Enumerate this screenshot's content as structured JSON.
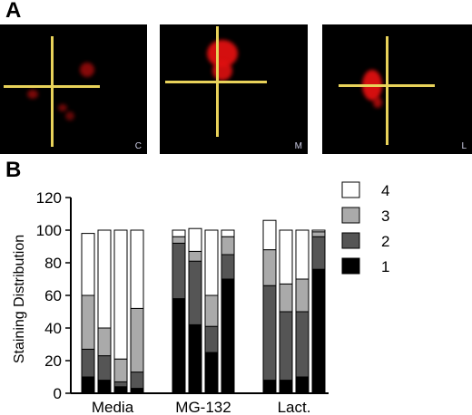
{
  "panel_a": {
    "label": "A",
    "images": [
      {
        "corner_label": "C"
      },
      {
        "corner_label": "M"
      },
      {
        "corner_label": "L"
      }
    ],
    "crosshair_color": "#e8d25a",
    "stain_color": "#e01010"
  },
  "panel_b_label": "B",
  "chart_data": {
    "type": "bar",
    "stacked": true,
    "ylabel": "Staining Distribution",
    "ylim": [
      0,
      120
    ],
    "yticks": [
      0,
      20,
      40,
      60,
      80,
      100,
      120
    ],
    "groups": [
      "Media",
      "MG-132",
      "Lact."
    ],
    "bars_per_group": 4,
    "series": [
      {
        "name": "1",
        "color": "#000000",
        "values": [
          10,
          8,
          4,
          3,
          58,
          42,
          25,
          70,
          8,
          8,
          10,
          76
        ]
      },
      {
        "name": "2",
        "color": "#555555",
        "values": [
          17,
          15,
          3,
          10,
          34,
          39,
          16,
          15,
          58,
          42,
          40,
          20
        ]
      },
      {
        "name": "3",
        "color": "#aaaaaa",
        "values": [
          33,
          17,
          14,
          39,
          4,
          6,
          19,
          11,
          22,
          17,
          20,
          3
        ]
      },
      {
        "name": "4",
        "color": "#ffffff",
        "values": [
          38,
          60,
          79,
          48,
          4,
          14,
          40,
          4,
          18,
          33,
          30,
          1
        ]
      }
    ],
    "legend_position": "top-right",
    "grid": false
  }
}
